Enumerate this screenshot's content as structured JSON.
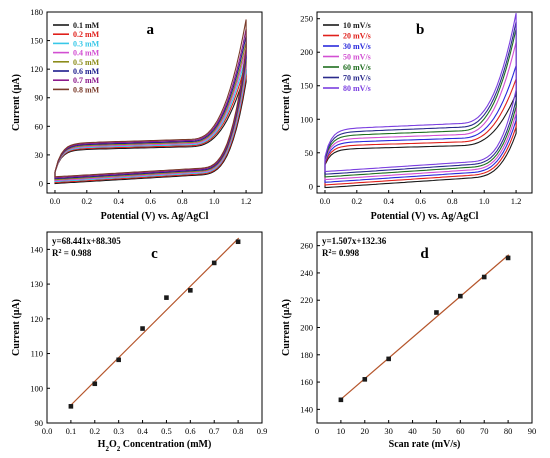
{
  "chart_data": [
    {
      "type": "line",
      "letter": "a",
      "xlabel": "Potential (V) vs. Ag/AgCl",
      "ylabel": "Current (μA)",
      "xlim": [
        -0.05,
        1.3
      ],
      "ylim": [
        -10,
        180
      ],
      "xticks": [
        "0.0",
        "0.2",
        "0.4",
        "0.6",
        "0.8",
        "1.0",
        "1.2"
      ],
      "xtick_values": [
        0,
        0.2,
        0.4,
        0.6,
        0.8,
        1.0,
        1.2
      ],
      "yticks": [
        "0",
        "30",
        "60",
        "90",
        "120",
        "150",
        "180"
      ],
      "ytick_values": [
        0,
        30,
        60,
        90,
        120,
        150,
        180
      ],
      "legend_position": "top-left",
      "cv_params": {
        "e_start": 0.0,
        "e_end": 1.2,
        "ox_base_start": 12,
        "ox_plateau": [
          35,
          36,
          37,
          38,
          39,
          40,
          41,
          42
        ],
        "ox_slope": 25,
        "red_base": [
          0,
          1,
          2,
          3,
          4,
          5,
          6,
          7
        ],
        "red_slope": 28,
        "peak_current": [
          120,
          128,
          135,
          142,
          148,
          155,
          162,
          172
        ],
        "red_peak": [
          95,
          100,
          105,
          110,
          115,
          120,
          125,
          130
        ]
      },
      "series": [
        {
          "name": "0.1 mM",
          "color": "#1a1a1a"
        },
        {
          "name": "0.2 mM",
          "color": "#e0201b"
        },
        {
          "name": "0.3 mM",
          "color": "#38c8e8"
        },
        {
          "name": "0.4 mM",
          "color": "#d24fd2"
        },
        {
          "name": "0.5 mM",
          "color": "#8c8c1a"
        },
        {
          "name": "0.6 mM",
          "color": "#1c1c8c"
        },
        {
          "name": "0.7 mM",
          "color": "#8c1a8c"
        },
        {
          "name": "0.8 mM",
          "color": "#7a3b2a"
        }
      ]
    },
    {
      "type": "line",
      "letter": "b",
      "xlabel": "Potential (V) vs. Ag/AgCl",
      "ylabel": "Current (μA)",
      "xlim": [
        -0.05,
        1.3
      ],
      "ylim": [
        -10,
        260
      ],
      "xticks": [
        "0.0",
        "0.2",
        "0.4",
        "0.6",
        "0.8",
        "1.0",
        "1.2"
      ],
      "xtick_values": [
        0,
        0.2,
        0.4,
        0.6,
        0.8,
        1.0,
        1.2
      ],
      "yticks": [
        "0",
        "50",
        "100",
        "150",
        "200",
        "250"
      ],
      "ytick_values": [
        0,
        50,
        100,
        150,
        200,
        250
      ],
      "legend_position": "top-left",
      "cv_params": {
        "e_start": 0.0,
        "e_end": 1.2,
        "ox_base_start": [
          32,
          34,
          36,
          38,
          40,
          42,
          44
        ],
        "ox_plateau": [
          55,
          60,
          65,
          70,
          75,
          80,
          85
        ],
        "ox_slope": 30,
        "red_base": [
          -2,
          2,
          6,
          10,
          14,
          18,
          22
        ],
        "red_slope": 45,
        "peak_current": [
          138,
          160,
          180,
          215,
          235,
          245,
          258
        ],
        "red_peak": [
          60,
          70,
          80,
          90,
          100,
          110,
          125
        ]
      },
      "series": [
        {
          "name": "10 mV/s",
          "color": "#1a1a1a"
        },
        {
          "name": "20 mV/s",
          "color": "#e0201b"
        },
        {
          "name": "30 mV/s",
          "color": "#2a2adc"
        },
        {
          "name": "50 mV/s",
          "color": "#d24fd2"
        },
        {
          "name": "60 mV/s",
          "color": "#1f6e1f"
        },
        {
          "name": "70 mV/s",
          "color": "#2a2a8c"
        },
        {
          "name": "80 mV/s",
          "color": "#7b3fe0"
        }
      ]
    },
    {
      "type": "scatter",
      "letter": "c",
      "xlabel_main": "H",
      "xlabel_sub1": "2",
      "xlabel_mid": "O",
      "xlabel_sub2": "2",
      "xlabel_rest": " Concentration (mM)",
      "ylabel": "Current (μA)",
      "xlim": [
        0.0,
        0.9
      ],
      "ylim": [
        90,
        145
      ],
      "xticks": [
        "0.0",
        "0.1",
        "0.2",
        "0.3",
        "0.4",
        "0.5",
        "0.6",
        "0.7",
        "0.8",
        "0.9"
      ],
      "xtick_values": [
        0.0,
        0.1,
        0.2,
        0.3,
        0.4,
        0.5,
        0.6,
        0.7,
        0.8,
        0.9
      ],
      "yticks": [
        "90",
        "100",
        "110",
        "120",
        "130",
        "140"
      ],
      "ytick_values": [
        90,
        100,
        110,
        120,
        130,
        140
      ],
      "equation": "y=68.441x+88.305",
      "r2_label": "R",
      "r2_sup": "2",
      "r2_value": " = 0.988",
      "fit": {
        "slope": 68.441,
        "intercept": 88.305,
        "x_range": [
          0.1,
          0.8
        ]
      },
      "points": {
        "x": [
          0.1,
          0.2,
          0.3,
          0.4,
          0.5,
          0.6,
          0.7,
          0.8
        ],
        "y": [
          94.8,
          101.3,
          108.2,
          117.2,
          126.1,
          128.2,
          136.1,
          142.2
        ]
      }
    },
    {
      "type": "scatter",
      "letter": "d",
      "xlabel": "Scan rate (mV/s)",
      "ylabel": "Current (μA)",
      "xlim": [
        0,
        90
      ],
      "ylim": [
        130,
        270
      ],
      "xticks": [
        "0",
        "10",
        "20",
        "30",
        "40",
        "50",
        "60",
        "70",
        "80",
        "90"
      ],
      "xtick_values": [
        0,
        10,
        20,
        30,
        40,
        50,
        60,
        70,
        80,
        90
      ],
      "yticks": [
        "140",
        "160",
        "180",
        "200",
        "220",
        "240",
        "260"
      ],
      "ytick_values": [
        140,
        160,
        180,
        200,
        220,
        240,
        260
      ],
      "equation": "y=1.507x+132.36",
      "r2_label": "R",
      "r2_sup": "2",
      "r2_value": "= 0.998",
      "fit": {
        "slope": 1.507,
        "intercept": 132.36,
        "x_range": [
          10,
          80
        ]
      },
      "points": {
        "x": [
          10,
          20,
          30,
          50,
          60,
          70,
          80
        ],
        "y": [
          147,
          162,
          177,
          211,
          223,
          237,
          251
        ]
      }
    }
  ],
  "colors": {
    "fit_line": "#b5552b",
    "marker": "#1a1a1a",
    "axis": "#000000"
  }
}
